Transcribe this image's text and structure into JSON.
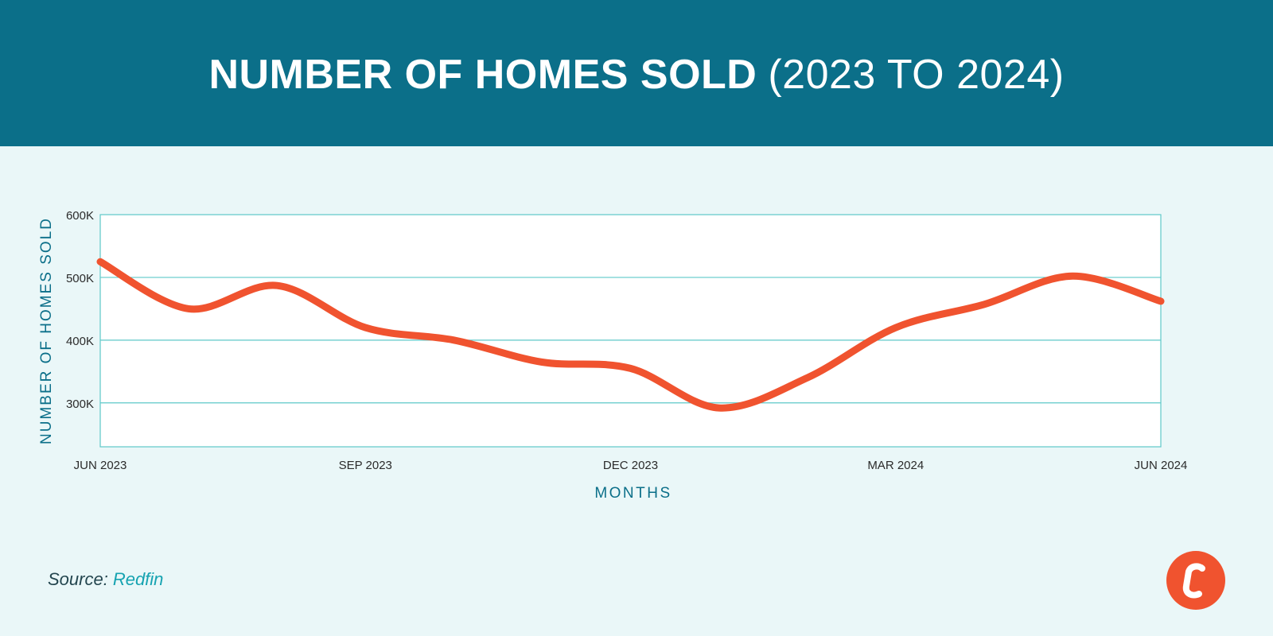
{
  "header": {
    "title_bold": "NUMBER OF HOMES SOLD",
    "title_light": "(2023 TO 2024)"
  },
  "colors": {
    "header_bg": "#0b6f89",
    "page_bg": "#eaf7f8",
    "plot_bg": "#ffffff",
    "grid": "#5ec9c9",
    "line": "#f0532f",
    "axis_title": "#0b6f89",
    "tick": "#2b2b2b",
    "source_link": "#16a3b1"
  },
  "chart_data": {
    "type": "line",
    "title": "NUMBER OF HOMES SOLD (2023 TO 2024)",
    "xlabel": "MONTHS",
    "ylabel": "NUMBER OF HOMES SOLD",
    "x_tick_labels": [
      "JUN 2023",
      "SEP 2023",
      "DEC 2023",
      "MAR 2024",
      "JUN 2024"
    ],
    "y_tick_labels": [
      "600K",
      "500K",
      "400K",
      "300K"
    ],
    "y_ticks": [
      600000,
      500000,
      400000,
      300000
    ],
    "ylim": [
      230000,
      600000
    ],
    "xlim": [
      "2023-06",
      "2024-06"
    ],
    "grid": true,
    "legend": "none",
    "series": [
      {
        "x": [
          "2023-06",
          "2023-07",
          "2023-08",
          "2023-09",
          "2023-10",
          "2023-11",
          "2023-12",
          "2024-01",
          "2024-02",
          "2024-03",
          "2024-04",
          "2024-05",
          "2024-06"
        ],
        "values": [
          525000,
          450000,
          487000,
          420000,
          400000,
          365000,
          355000,
          292000,
          340000,
          420000,
          457000,
          502000,
          462000
        ]
      }
    ]
  },
  "source": {
    "label": "Source:",
    "name": "Redfin"
  },
  "logo": {
    "letter": "C"
  }
}
